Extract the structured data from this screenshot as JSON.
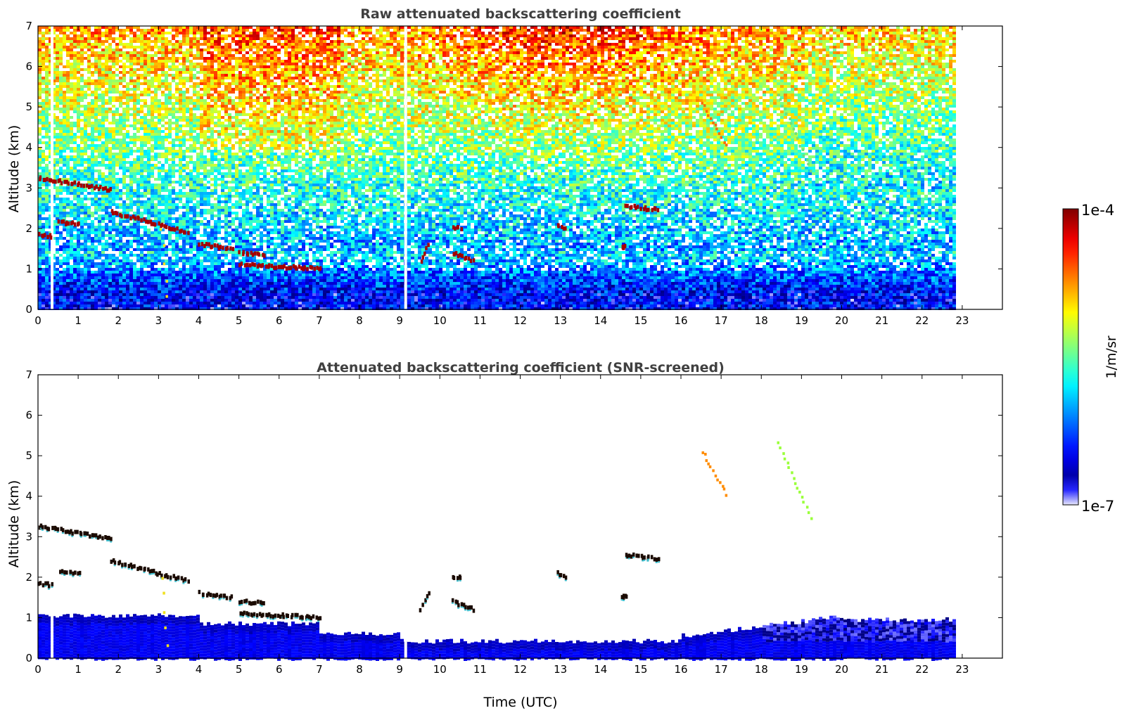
{
  "chart_data": [
    {
      "type": "heatmap",
      "title": "Raw attenuated backscattering coefficient",
      "xlabel": "",
      "ylabel": "Altitude (km)",
      "xlim": [
        0,
        24
      ],
      "ylim": [
        0,
        7
      ],
      "xticks": [
        "0",
        "1",
        "2",
        "3",
        "4",
        "5",
        "6",
        "7",
        "8",
        "9",
        "10",
        "11",
        "12",
        "13",
        "14",
        "15",
        "16",
        "17",
        "18",
        "19",
        "20",
        "21",
        "22",
        "23"
      ],
      "yticks": [
        "0",
        "1",
        "2",
        "3",
        "4",
        "5",
        "6",
        "7"
      ],
      "data_end_time": 22.8,
      "gaps": [
        0.35,
        9.15
      ],
      "features": [
        {
          "t0": 0.0,
          "t1": 1.8,
          "z0": 3.25,
          "z1": 2.95,
          "kind": "cloud"
        },
        {
          "t0": 0.0,
          "t1": 0.3,
          "z0": 1.85,
          "z1": 1.8,
          "kind": "cloud"
        },
        {
          "t0": 0.5,
          "t1": 1.0,
          "z0": 2.15,
          "z1": 2.1,
          "kind": "cloud"
        },
        {
          "t0": 1.8,
          "t1": 3.7,
          "z0": 2.4,
          "z1": 1.9,
          "kind": "cloud"
        },
        {
          "t0": 4.0,
          "t1": 4.8,
          "z0": 1.6,
          "z1": 1.5,
          "kind": "cloud"
        },
        {
          "t0": 5.0,
          "t1": 5.6,
          "z0": 1.4,
          "z1": 1.35,
          "kind": "cloud"
        },
        {
          "t0": 5.0,
          "t1": 7.0,
          "z0": 1.1,
          "z1": 1.0,
          "kind": "cloud"
        },
        {
          "t0": 9.5,
          "t1": 9.7,
          "z0": 1.2,
          "z1": 1.6,
          "kind": "cloud"
        },
        {
          "t0": 10.3,
          "t1": 10.8,
          "z0": 1.4,
          "z1": 1.2,
          "kind": "cloud"
        },
        {
          "t0": 10.3,
          "t1": 10.5,
          "z0": 2.0,
          "z1": 2.0,
          "kind": "cloud"
        },
        {
          "t0": 12.9,
          "t1": 13.1,
          "z0": 2.1,
          "z1": 2.0,
          "kind": "cloud"
        },
        {
          "t0": 14.6,
          "t1": 15.4,
          "z0": 2.55,
          "z1": 2.45,
          "kind": "cloud"
        },
        {
          "t0": 14.5,
          "t1": 14.6,
          "z0": 1.5,
          "z1": 1.55,
          "kind": "cloud"
        },
        {
          "t0": 16.5,
          "t1": 17.1,
          "z0": 5.1,
          "z1": 4.05,
          "kind": "fallstreak-orange"
        },
        {
          "t0": 18.4,
          "t1": 19.2,
          "z0": 5.3,
          "z1": 3.45,
          "kind": "fallstreak-green"
        },
        {
          "t0": 3.05,
          "t1": 3.2,
          "z0": 2.0,
          "z1": 0.3,
          "kind": "plume"
        }
      ]
    },
    {
      "type": "heatmap",
      "title": "Attenuated backscattering coefficient (SNR-screened)",
      "xlabel": "Time (UTC)",
      "ylabel": "Altitude (km)",
      "xlim": [
        0,
        24
      ],
      "ylim": [
        0,
        7
      ],
      "xticks": [
        "0",
        "1",
        "2",
        "3",
        "4",
        "5",
        "6",
        "7",
        "8",
        "9",
        "10",
        "11",
        "12",
        "13",
        "14",
        "15",
        "16",
        "17",
        "18",
        "19",
        "20",
        "21",
        "22",
        "23"
      ],
      "yticks": [
        "0",
        "1",
        "2",
        "3",
        "4",
        "5",
        "6",
        "7"
      ]
    }
  ],
  "colorbar": {
    "label": "1/m/sr",
    "max_label": "1e-4",
    "min_label": "1e-7",
    "colormap": "jet",
    "scale": "log",
    "range": [
      1e-07,
      0.0001
    ]
  },
  "colors": {
    "title_text": "#404040",
    "axis": "#000000",
    "low_end": "#e8e8fb",
    "high_end": "#800000"
  }
}
